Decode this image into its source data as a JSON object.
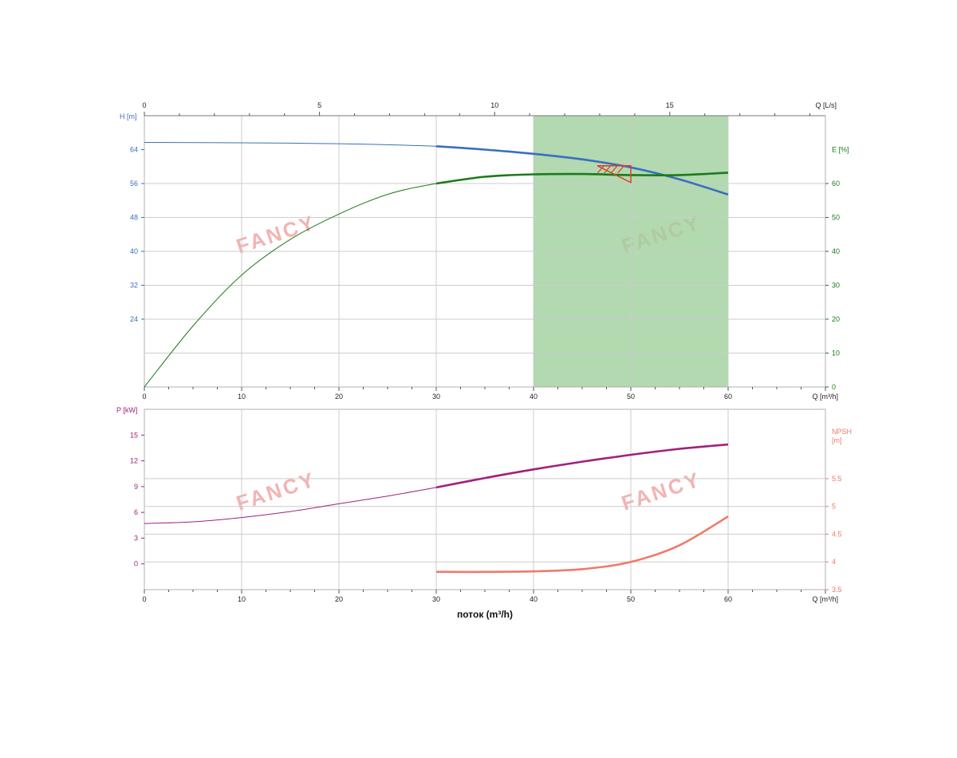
{
  "chart_data": [
    {
      "type": "line",
      "panel": "head-efficiency",
      "x_unit_label": "Q [m³/h]",
      "x_ticks": [
        0,
        10,
        20,
        30,
        40,
        50,
        60
      ],
      "xlim": [
        0,
        70
      ],
      "top_axis_label": "Q [L/s]",
      "top_axis_ticks": [
        0,
        5,
        10,
        15
      ],
      "left_axis_label": "H [m]",
      "left_axis_ticks": [
        24,
        32,
        40,
        48,
        56,
        64
      ],
      "ylim_left": [
        8,
        72
      ],
      "right_axis_label": "E [%]",
      "right_axis_ticks": [
        0,
        10,
        20,
        30,
        40,
        50,
        60
      ],
      "ylim_right": [
        0,
        80
      ],
      "grid": true,
      "recommended_range": {
        "x_from": 40,
        "x_to": 60,
        "color": "#9fcf9c"
      },
      "operating_point": {
        "x": 50,
        "y_head": 60
      },
      "series": [
        {
          "axis": "left",
          "color": "#3a6fc0",
          "x": [
            0,
            10,
            20,
            30,
            35,
            40,
            45,
            50,
            55,
            60
          ],
          "y": [
            65.7,
            65.6,
            65.4,
            64.8,
            64.0,
            63.0,
            61.7,
            59.8,
            57.0,
            53.4
          ],
          "bold_from": 30
        },
        {
          "axis": "right",
          "color": "#1c7a1c",
          "x": [
            0,
            5,
            10,
            15,
            20,
            25,
            30,
            35,
            40,
            45,
            50,
            55,
            60
          ],
          "y": [
            0,
            18,
            33,
            43.5,
            51,
            56.8,
            60,
            62,
            62.7,
            62.8,
            62.5,
            62.5,
            63.2
          ],
          "bold_from": 30
        }
      ]
    },
    {
      "type": "line",
      "panel": "power-npsh",
      "x_unit_label": "Q [m³/h]",
      "x_ticks": [
        0,
        10,
        20,
        30,
        40,
        50,
        60
      ],
      "xlim": [
        0,
        70
      ],
      "xlabel": "поток (m³/h)",
      "left_axis_label": "P [kW]",
      "left_axis_ticks": [
        0,
        3,
        6,
        9,
        12,
        15
      ],
      "ylim_left": [
        -3,
        18
      ],
      "right_axis_label_lines": [
        "NPSH",
        "[m]"
      ],
      "right_axis_ticks": [
        3.5,
        4,
        4.5,
        5,
        5.5
      ],
      "ylim_right": [
        3.5,
        6.75
      ],
      "grid": true,
      "series": [
        {
          "axis": "left",
          "color": "#a0207f",
          "x": [
            0,
            5,
            10,
            15,
            20,
            25,
            30,
            35,
            40,
            45,
            50,
            55,
            60
          ],
          "y": [
            4.7,
            4.9,
            5.4,
            6.1,
            7.0,
            7.9,
            8.9,
            10.0,
            11.0,
            11.9,
            12.7,
            13.4,
            13.9
          ],
          "bold_from": 30
        },
        {
          "axis": "right",
          "color": "#f07a6a",
          "x": [
            30,
            35,
            40,
            45,
            50,
            55,
            60
          ],
          "y": [
            3.82,
            3.82,
            3.83,
            3.87,
            4.0,
            4.3,
            4.82
          ],
          "bold_from": 30
        }
      ]
    }
  ],
  "watermark": {
    "text": "FANCY",
    "color": "#f3b3b3"
  },
  "colors": {
    "grid": "#cccccc",
    "frame": "#b0b0b0",
    "axis_text": "#222222",
    "head_axis": "#3a6fc0",
    "eff_axis": "#1c7a1c",
    "power_axis": "#a0207f",
    "npsh_axis": "#f07a6a",
    "op_marker": "#e03a2a"
  }
}
